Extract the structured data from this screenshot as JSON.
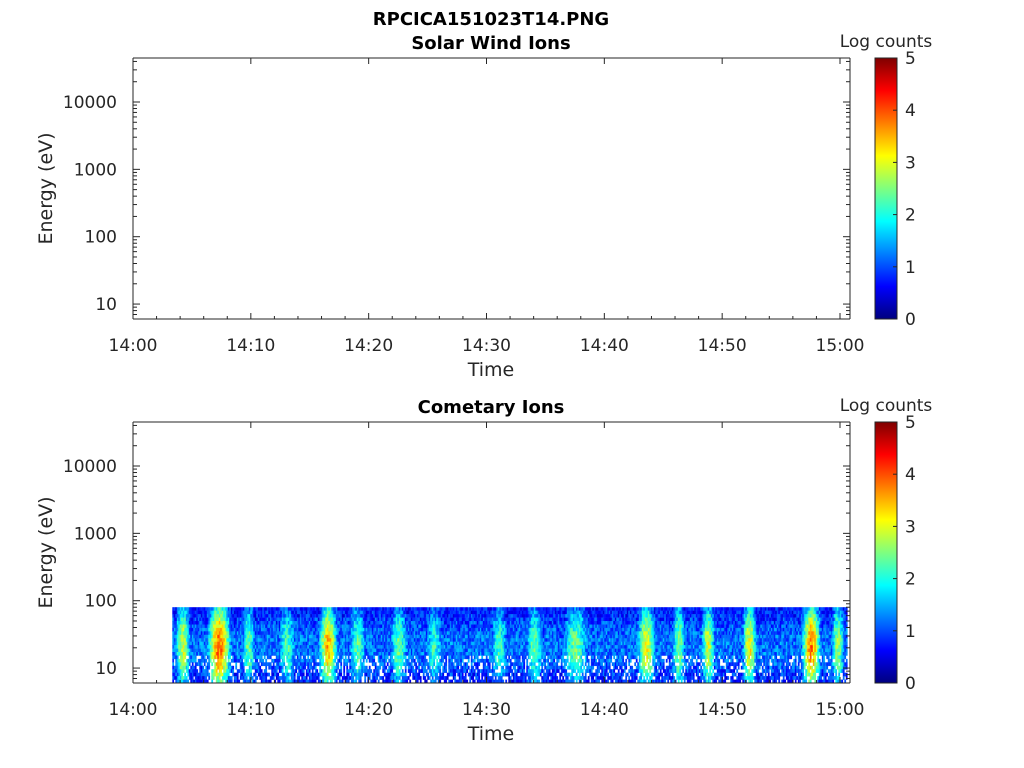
{
  "figure_title": "RPCICA151023T14.PNG",
  "colormap": [
    "#00007f",
    "#0000ff",
    "#007fff",
    "#00ffff",
    "#7fff7f",
    "#ffff00",
    "#ff7f00",
    "#ff0000",
    "#7f0000"
  ],
  "chart_data": [
    {
      "type": "heatmap",
      "title": "Solar Wind Ions",
      "xlabel": "Time",
      "ylabel": "Energy (eV)",
      "x_ticks": [
        "14:00",
        "14:10",
        "14:20",
        "14:30",
        "14:40",
        "14:50",
        "15:00"
      ],
      "xlim": [
        "14:00",
        "15:00"
      ],
      "y_scale": "log",
      "y_ticks": [
        "10",
        "100",
        "1000",
        "10000"
      ],
      "ylim": [
        6,
        45000
      ],
      "colorbar": {
        "label": "Log counts",
        "range": [
          0,
          5
        ],
        "ticks": [
          "0",
          "1",
          "2",
          "3",
          "4",
          "5"
        ]
      },
      "has_data": false,
      "bands": []
    },
    {
      "type": "heatmap",
      "title": "Cometary Ions",
      "xlabel": "Time",
      "ylabel": "Energy (eV)",
      "x_ticks": [
        "14:00",
        "14:10",
        "14:20",
        "14:30",
        "14:40",
        "14:50",
        "15:00"
      ],
      "xlim": [
        "14:00",
        "15:00"
      ],
      "y_scale": "log",
      "y_ticks": [
        "10",
        "100",
        "1000",
        "10000"
      ],
      "ylim": [
        6,
        45000
      ],
      "colorbar": {
        "label": "Log counts",
        "range": [
          0,
          5
        ],
        "ticks": [
          "0",
          "1",
          "2",
          "3",
          "4",
          "5"
        ]
      },
      "has_data": true,
      "data_time_range": [
        "14:03:20",
        "15:00:30"
      ],
      "data_energy_range_eV": [
        6,
        80
      ],
      "bands": [
        {
          "t_start": "14:03:20",
          "t_end": "14:05:00",
          "peak_log_counts": 2.9
        },
        {
          "t_start": "14:06:00",
          "t_end": "14:08:30",
          "peak_log_counts": 3.9
        },
        {
          "t_start": "14:09:00",
          "t_end": "14:10:30",
          "peak_log_counts": 2.4
        },
        {
          "t_start": "14:12:00",
          "t_end": "14:14:00",
          "peak_log_counts": 2.2
        },
        {
          "t_start": "14:15:30",
          "t_end": "14:17:30",
          "peak_log_counts": 3.5
        },
        {
          "t_start": "14:18:00",
          "t_end": "14:20:00",
          "peak_log_counts": 2.3
        },
        {
          "t_start": "14:21:30",
          "t_end": "14:23:30",
          "peak_log_counts": 2.4
        },
        {
          "t_start": "14:24:30",
          "t_end": "14:26:30",
          "peak_log_counts": 2.1
        },
        {
          "t_start": "14:30:00",
          "t_end": "14:32:00",
          "peak_log_counts": 2.2
        },
        {
          "t_start": "14:33:00",
          "t_end": "14:35:00",
          "peak_log_counts": 2.3
        },
        {
          "t_start": "14:36:00",
          "t_end": "14:39:00",
          "peak_log_counts": 2.4
        },
        {
          "t_start": "14:42:30",
          "t_end": "14:44:30",
          "peak_log_counts": 3.1
        },
        {
          "t_start": "14:45:30",
          "t_end": "14:47:00",
          "peak_log_counts": 2.6
        },
        {
          "t_start": "14:48:00",
          "t_end": "14:49:30",
          "peak_log_counts": 2.9
        },
        {
          "t_start": "14:51:30",
          "t_end": "14:53:00",
          "peak_log_counts": 3.2
        },
        {
          "t_start": "14:56:30",
          "t_end": "14:58:30",
          "peak_log_counts": 3.8
        },
        {
          "t_start": "14:59:00",
          "t_end": "15:00:30",
          "peak_log_counts": 2.7
        }
      ]
    }
  ]
}
